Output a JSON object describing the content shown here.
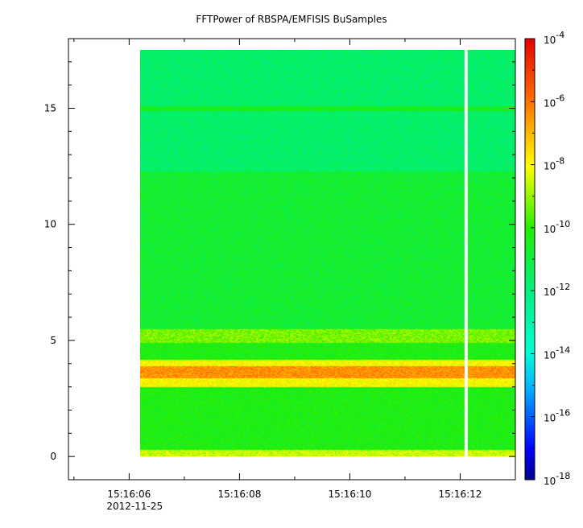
{
  "chart_data": {
    "type": "heatmap",
    "title": "FFTPower of RBSPA/EMFISIS  BuSamples",
    "xlabel": "",
    "ylabel": "",
    "x_ticks": [
      {
        "label": "15:16:06",
        "value": 6
      },
      {
        "label": "15:16:08",
        "value": 8
      },
      {
        "label": "15:16:10",
        "value": 10
      },
      {
        "label": "15:16:12",
        "value": 12
      }
    ],
    "x_date_label": "2012-11-25",
    "x_range_seconds": [
      4.9,
      13.0
    ],
    "data_x_range_seconds": [
      6.2,
      13.0
    ],
    "gap_seconds": 12.1,
    "y_ticks": [
      "0",
      "5",
      "10",
      "15"
    ],
    "ylim": [
      -1,
      18
    ],
    "data_y_range": [
      0,
      17.5
    ],
    "colorbar": {
      "scale": "log",
      "range": [
        1e-18,
        0.0001
      ],
      "ticks": [
        {
          "base": "10",
          "exp": "-4",
          "value": -4
        },
        {
          "base": "10",
          "exp": "-6",
          "value": -6
        },
        {
          "base": "10",
          "exp": "-8",
          "value": -8
        },
        {
          "base": "10",
          "exp": "-10",
          "value": -10
        },
        {
          "base": "10",
          "exp": "-12",
          "value": -12
        },
        {
          "base": "10",
          "exp": "-14",
          "value": -14
        },
        {
          "base": "10",
          "exp": "-16",
          "value": -16
        },
        {
          "base": "10",
          "exp": "-18",
          "value": -18
        }
      ],
      "colormap": "rainbow"
    },
    "frequency_bands": [
      {
        "y_from": 0,
        "y_to": 0.3,
        "log_power": -8.5
      },
      {
        "y_from": 0.3,
        "y_to": 3.0,
        "log_power": -10.3
      },
      {
        "y_from": 3.0,
        "y_to": 3.4,
        "log_power": -8.0
      },
      {
        "y_from": 3.4,
        "y_to": 3.9,
        "log_power": -6.5
      },
      {
        "y_from": 3.9,
        "y_to": 4.2,
        "log_power": -8.0
      },
      {
        "y_from": 4.2,
        "y_to": 4.9,
        "log_power": -10.3
      },
      {
        "y_from": 4.9,
        "y_to": 5.5,
        "log_power": -9.2
      },
      {
        "y_from": 5.5,
        "y_to": 12.3,
        "log_power": -10.8
      },
      {
        "y_from": 12.3,
        "y_to": 14.9,
        "log_power": -11.7
      },
      {
        "y_from": 14.9,
        "y_to": 15.1,
        "log_power": -10.5
      },
      {
        "y_from": 15.1,
        "y_to": 17.5,
        "log_power": -11.7
      }
    ]
  }
}
